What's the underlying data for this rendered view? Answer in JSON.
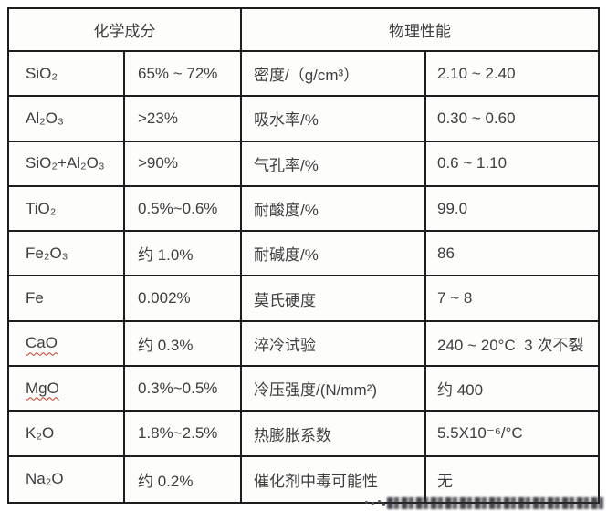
{
  "table": {
    "header_chemical": "化学成分",
    "header_physical": "物理性能",
    "border_color": "#1d1d1d",
    "text_color": "#3e3e3e",
    "squiggle_color": "#c0392b",
    "rows": [
      {
        "chem": "SiO₂",
        "chem_val": "65% ~ 72%",
        "phys": "密度/（g/cm³）",
        "phys_val": "2.10 ~ 2.40"
      },
      {
        "chem": "Al₂O₃",
        "chem_val": ">23%",
        "phys": "吸水率/%",
        "phys_val": "0.30 ~ 0.60"
      },
      {
        "chem": "SiO₂+Al₂O₃",
        "chem_val": ">90%",
        "phys": "气孔率/%",
        "phys_val": "0.6 ~ 1.10"
      },
      {
        "chem": "TiO₂",
        "chem_val": "0.5%~0.6%",
        "phys": "耐酸度/%",
        "phys_val": "99.0"
      },
      {
        "chem": "Fe₂O₃",
        "chem_val": "约 1.0%",
        "phys": "耐碱度/%",
        "phys_val": "86"
      },
      {
        "chem": "Fe",
        "chem_val": "0.002%",
        "phys": "莫氏硬度",
        "phys_val": "7 ~ 8"
      },
      {
        "chem": "CaO",
        "chem_val": "约 0.3%",
        "phys": "淬冷试验",
        "phys_val": "240 ~ 20°C  3 次不裂"
      },
      {
        "chem": "MgO",
        "chem_val": "0.3%~0.5%",
        "phys": "冷压强度/(N/mm²)",
        "phys_val": "约 400"
      },
      {
        "chem": "K₂O",
        "chem_val": "1.8%~2.5%",
        "phys": "热膨胀系数",
        "phys_val": "5.5X10⁻⁶/°C"
      },
      {
        "chem": "Na₂O",
        "chem_val": "约 0.2%",
        "phys": "催化剂中毒可能性",
        "phys_val": "无"
      }
    ]
  }
}
